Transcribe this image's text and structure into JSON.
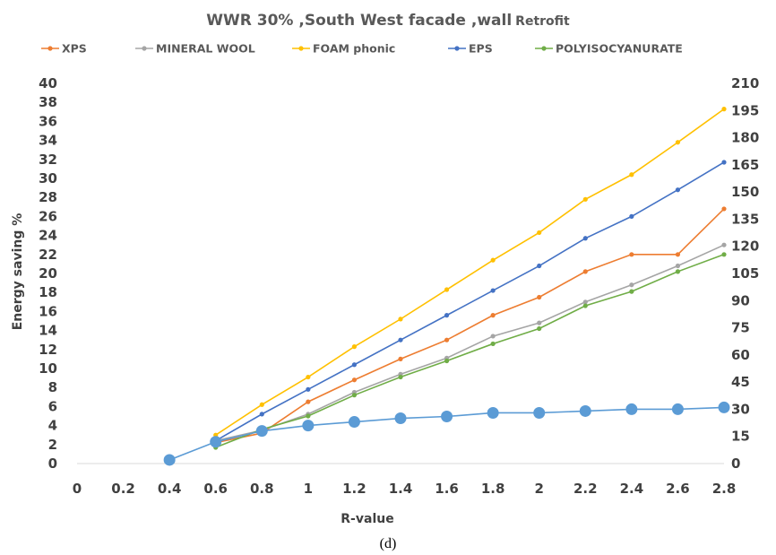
{
  "chart_data": {
    "type": "line",
    "title": "WWR 30% ,South West facade ,wall",
    "title_suffix": "Retrofit",
    "xlabel": "R-value",
    "ylabel": "Energy saving %",
    "caption": "(d)",
    "xlim": [
      0,
      2.8
    ],
    "ylim": [
      0,
      40
    ],
    "y2lim": [
      0,
      210
    ],
    "x_ticks": [
      "0",
      "0.2",
      "0.4",
      "0.6",
      "0.8",
      "1",
      "1.2",
      "1.4",
      "1.6",
      "1.8",
      "2",
      "2.2",
      "2.4",
      "2.6",
      "2.8"
    ],
    "y_ticks": [
      "0",
      "2",
      "4",
      "6",
      "8",
      "10",
      "12",
      "14",
      "16",
      "18",
      "20",
      "22",
      "24",
      "26",
      "28",
      "30",
      "32",
      "34",
      "36",
      "38",
      "40"
    ],
    "y2_ticks": [
      "0",
      "15",
      "30",
      "45",
      "60",
      "75",
      "90",
      "105",
      "120",
      "135",
      "150",
      "165",
      "180",
      "195",
      "210"
    ],
    "legend_position": "top",
    "grid": false,
    "x": [
      0.6,
      0.8,
      1.0,
      1.2,
      1.4,
      1.6,
      1.8,
      2.0,
      2.2,
      2.4,
      2.6,
      2.8
    ],
    "series": [
      {
        "name": "XPS",
        "color": "#ED7D31",
        "axis": "left",
        "values": [
          2.2,
          3.2,
          6.5,
          8.8,
          11.0,
          13.0,
          15.6,
          17.5,
          20.2,
          22.0,
          22.0,
          26.8
        ]
      },
      {
        "name": "MINERAL WOOL",
        "color": "#A5A5A5",
        "axis": "left",
        "values": [
          2.4,
          3.5,
          5.2,
          7.5,
          9.4,
          11.1,
          13.4,
          14.8,
          17.0,
          18.8,
          20.8,
          23.0
        ]
      },
      {
        "name": "FOAM phonic",
        "color": "#FFC000",
        "axis": "left",
        "values": [
          3.0,
          6.2,
          9.1,
          12.3,
          15.2,
          18.3,
          21.4,
          24.3,
          27.8,
          30.4,
          33.8,
          37.3
        ]
      },
      {
        "name": "EPS",
        "color": "#4472C4",
        "axis": "left",
        "values": [
          2.4,
          5.2,
          7.8,
          10.4,
          13.0,
          15.6,
          18.2,
          20.8,
          23.7,
          26.0,
          28.8,
          31.7
        ]
      },
      {
        "name": "POLYISOCYANURATE",
        "color": "#70AD47",
        "axis": "left",
        "values": [
          1.7,
          3.6,
          5.0,
          7.2,
          9.1,
          10.8,
          12.6,
          14.2,
          16.6,
          18.1,
          20.2,
          22.0
        ]
      }
    ],
    "secondary_series": {
      "color": "#5B9BD5",
      "axis": "right",
      "x": [
        0.4,
        0.6,
        0.8,
        1.0,
        1.2,
        1.4,
        1.6,
        1.8,
        2.0,
        2.2,
        2.4,
        2.6,
        2.8
      ],
      "values": [
        2,
        12,
        18,
        21,
        23,
        25,
        26,
        28,
        28,
        29,
        30,
        30,
        31
      ]
    }
  }
}
